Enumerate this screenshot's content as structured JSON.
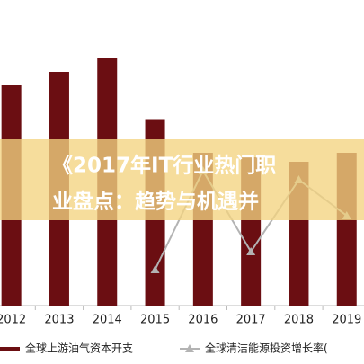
{
  "chart_data": {
    "type": "bar",
    "categories": [
      "2012",
      "2013",
      "2014",
      "2015",
      "2016",
      "2017",
      "2018",
      "2019"
    ],
    "series": [
      {
        "name": "全球上游油气资本开支",
        "color": "#6b0e12",
        "values": [
          490,
          520,
          550,
          415,
          340,
          330,
          320,
          340
        ]
      },
      {
        "name": "全球清洁能源投资增长率(",
        "color": "#b3b3b3",
        "type": "line",
        "axis": "y2",
        "values": [
          null,
          null,
          null,
          4,
          15,
          6,
          14,
          10
        ]
      }
    ],
    "ylim": [
      0,
      600
    ],
    "y2lim": [
      0,
      30
    ],
    "legend": "bottom"
  },
  "overlay": {
    "title_lines": [
      "《2017年IT行业热门职",
      "业盘点：趋势与机遇并"
    ]
  }
}
